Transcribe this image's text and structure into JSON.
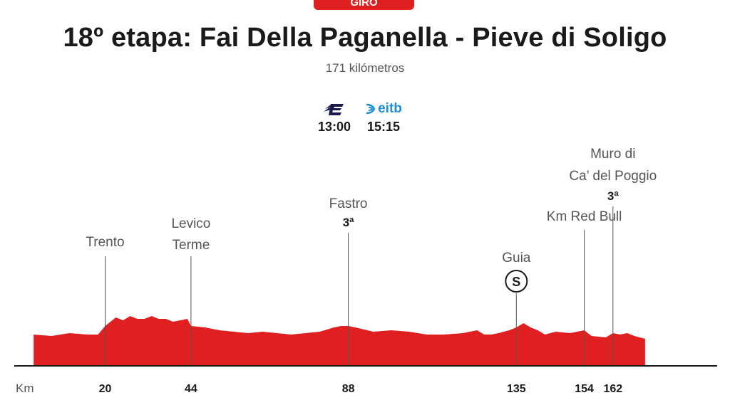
{
  "header": {
    "badge": "GIRO",
    "title": "18º etapa: Fai Della Paganella - Pieve di Soligo",
    "subtitle": "171 kilómetros"
  },
  "broadcast": [
    {
      "channel_icon": "etb-logo-icon",
      "time": "13:00",
      "color": "#1a1a4e"
    },
    {
      "channel_icon": "eitb-logo-icon",
      "label": "eitb",
      "time": "15:15",
      "color": "#1e8fd5"
    }
  ],
  "chart_data": {
    "type": "area",
    "title": "18º etapa: Fai Della Paganella - Pieve di Soligo",
    "subtitle": "171 kilómetros",
    "xlabel": "Km",
    "xlim": [
      0,
      171
    ],
    "fill_color": "#e02020",
    "xticks": [
      20,
      44,
      88,
      135,
      154,
      162
    ],
    "profile": {
      "x": [
        0,
        5,
        10,
        15,
        18,
        20,
        23,
        25,
        27,
        29,
        31,
        33,
        35,
        37,
        39,
        41,
        43,
        44,
        48,
        52,
        56,
        60,
        64,
        68,
        72,
        76,
        80,
        84,
        86,
        88,
        90,
        95,
        100,
        105,
        110,
        115,
        120,
        124,
        126,
        128,
        130,
        133,
        135,
        137,
        139,
        141,
        143,
        146,
        150,
        154,
        156,
        160,
        162,
        164,
        166,
        168,
        171
      ],
      "y": [
        22,
        21,
        23,
        22,
        22,
        28,
        34,
        32,
        35,
        33,
        33,
        35,
        33,
        33,
        31,
        32,
        33,
        28,
        27,
        25,
        24,
        23,
        24,
        23,
        22,
        23,
        24,
        27,
        28,
        28,
        27,
        24,
        25,
        24,
        22,
        22,
        23,
        25,
        22,
        22,
        23,
        25,
        27,
        30,
        27,
        25,
        22,
        24,
        23,
        25,
        21,
        20,
        23,
        22,
        23,
        21,
        19
      ]
    },
    "annotations": [
      {
        "km": 20,
        "label_lines": [
          "Trento"
        ],
        "category": ""
      },
      {
        "km": 44,
        "label_lines": [
          "Levico",
          "Terme"
        ],
        "category": ""
      },
      {
        "km": 88,
        "label_lines": [
          "Fastro"
        ],
        "category": "3ª"
      },
      {
        "km": 135,
        "label_lines": [
          "Guia"
        ],
        "category": "",
        "sprint": "S"
      },
      {
        "km": 154,
        "label_lines": [
          "Km Red Bull"
        ],
        "category": ""
      },
      {
        "km": 162,
        "label_lines": [
          "Muro di",
          "Ca’ del Poggio"
        ],
        "category": "3ª"
      }
    ]
  }
}
